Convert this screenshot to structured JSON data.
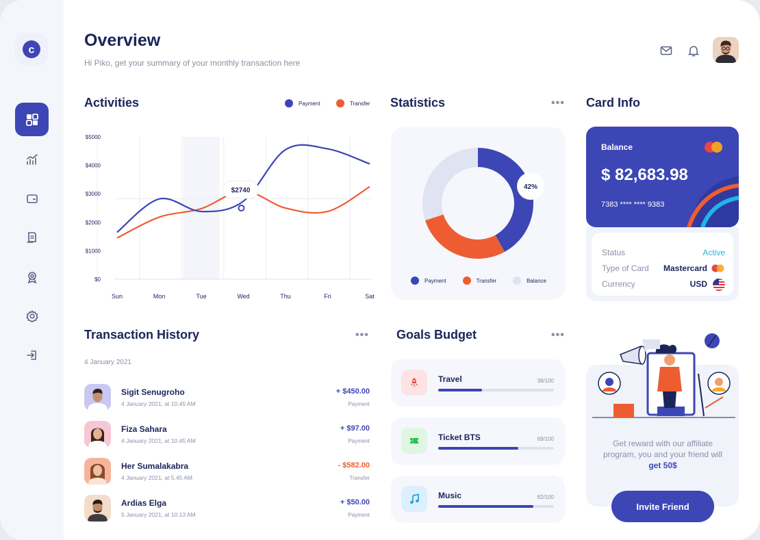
{
  "header": {
    "title": "Overview",
    "subtitle": "Hi Piko, get your summary of your monthly transaction here"
  },
  "sidebar": {
    "logo_letter": "c",
    "items": [
      {
        "icon": "dashboard-icon",
        "active": true
      },
      {
        "icon": "chart-icon",
        "active": false
      },
      {
        "icon": "wallet-icon",
        "active": false
      },
      {
        "icon": "document-icon",
        "active": false
      },
      {
        "icon": "award-icon",
        "active": false
      },
      {
        "icon": "settings-icon",
        "active": false
      },
      {
        "icon": "logout-icon",
        "active": false
      }
    ]
  },
  "activities": {
    "title": "Activities",
    "legend": [
      "Payment",
      "Transfer"
    ],
    "tooltip": "$2740"
  },
  "chart_data": {
    "type": "line",
    "title": "Activities",
    "x": [
      "Sun",
      "Mon",
      "Tue",
      "Wed",
      "Thu",
      "Fri",
      "Sat"
    ],
    "yticks": [
      "$0",
      "$1000",
      "$2000",
      "$3000",
      "$4000",
      "$5000"
    ],
    "ylim": [
      0,
      5000
    ],
    "series": [
      {
        "name": "Payment",
        "color": "#3c46b4",
        "values": [
          1650,
          2820,
          2380,
          2740,
          4550,
          4580,
          4050
        ]
      },
      {
        "name": "Transfer",
        "color": "#ee5d31",
        "values": [
          1450,
          2180,
          2480,
          3100,
          2500,
          2380,
          3250
        ]
      }
    ],
    "highlight_category": "Tue",
    "grid": true
  },
  "statistics": {
    "title": "Statistics",
    "center_label": "42%",
    "segments": [
      {
        "name": "Payment",
        "value": 42,
        "color": "#3c46b4"
      },
      {
        "name": "Transfer",
        "value": 28,
        "color": "#ee5d31"
      },
      {
        "name": "Balance",
        "value": 30,
        "color": "#dfe3f2"
      }
    ],
    "legend": [
      "Payment",
      "Transfer",
      "Balance"
    ]
  },
  "card_info": {
    "title": "Card Info",
    "balance_label": "Balance",
    "balance": "$ 82,683.98",
    "card_number": "7383 **** **** 9383",
    "status_label": "Status",
    "status_value": "Active",
    "type_label": "Type of Card",
    "type_value": "Mastercard",
    "currency_label": "Currency",
    "currency_value": "USD"
  },
  "transactions": {
    "title": "Transaction History",
    "date": "4 January 2021",
    "rows": [
      {
        "name": "Sigit Senugroho",
        "meta": "4 January 2021, at 10.45 AM",
        "amount": "+ $450.00",
        "type": "Payment",
        "negative": false
      },
      {
        "name": "Fiza Sahara",
        "meta": "4 January 2021, at 10.45 AM",
        "amount": "+ $97.00",
        "type": "Payment",
        "negative": false
      },
      {
        "name": "Her Sumalakabra",
        "meta": "4 January 2021, at 5.45 AM",
        "amount": "- $582.00",
        "type": "Transfer",
        "negative": true
      },
      {
        "name": "Ardias Elga",
        "meta": "5 January 2021, at 10.13 AM",
        "amount": "+ $50.00",
        "type": "Payment",
        "negative": false
      }
    ]
  },
  "goals": {
    "title": "Goals Budget",
    "items": [
      {
        "name": "Travel",
        "progress": "38/100",
        "value": 38,
        "icon": "rocket-icon",
        "icon_bg": "#fde3e3",
        "icon_color": "#e94545"
      },
      {
        "name": "Ticket BTS",
        "progress": "69/100",
        "value": 69,
        "icon": "ticket-icon",
        "icon_bg": "#dff6e3",
        "icon_color": "#2dbd4e"
      },
      {
        "name": "Music",
        "progress": "82/100",
        "value": 82,
        "icon": "music-icon",
        "icon_bg": "#dcf0fb",
        "icon_color": "#2aa3e0"
      }
    ]
  },
  "affiliate": {
    "text_before": "Get reward with our affiliate program, you and your friend will",
    "text_bold": "get 50$",
    "button": "Invite Friend"
  }
}
